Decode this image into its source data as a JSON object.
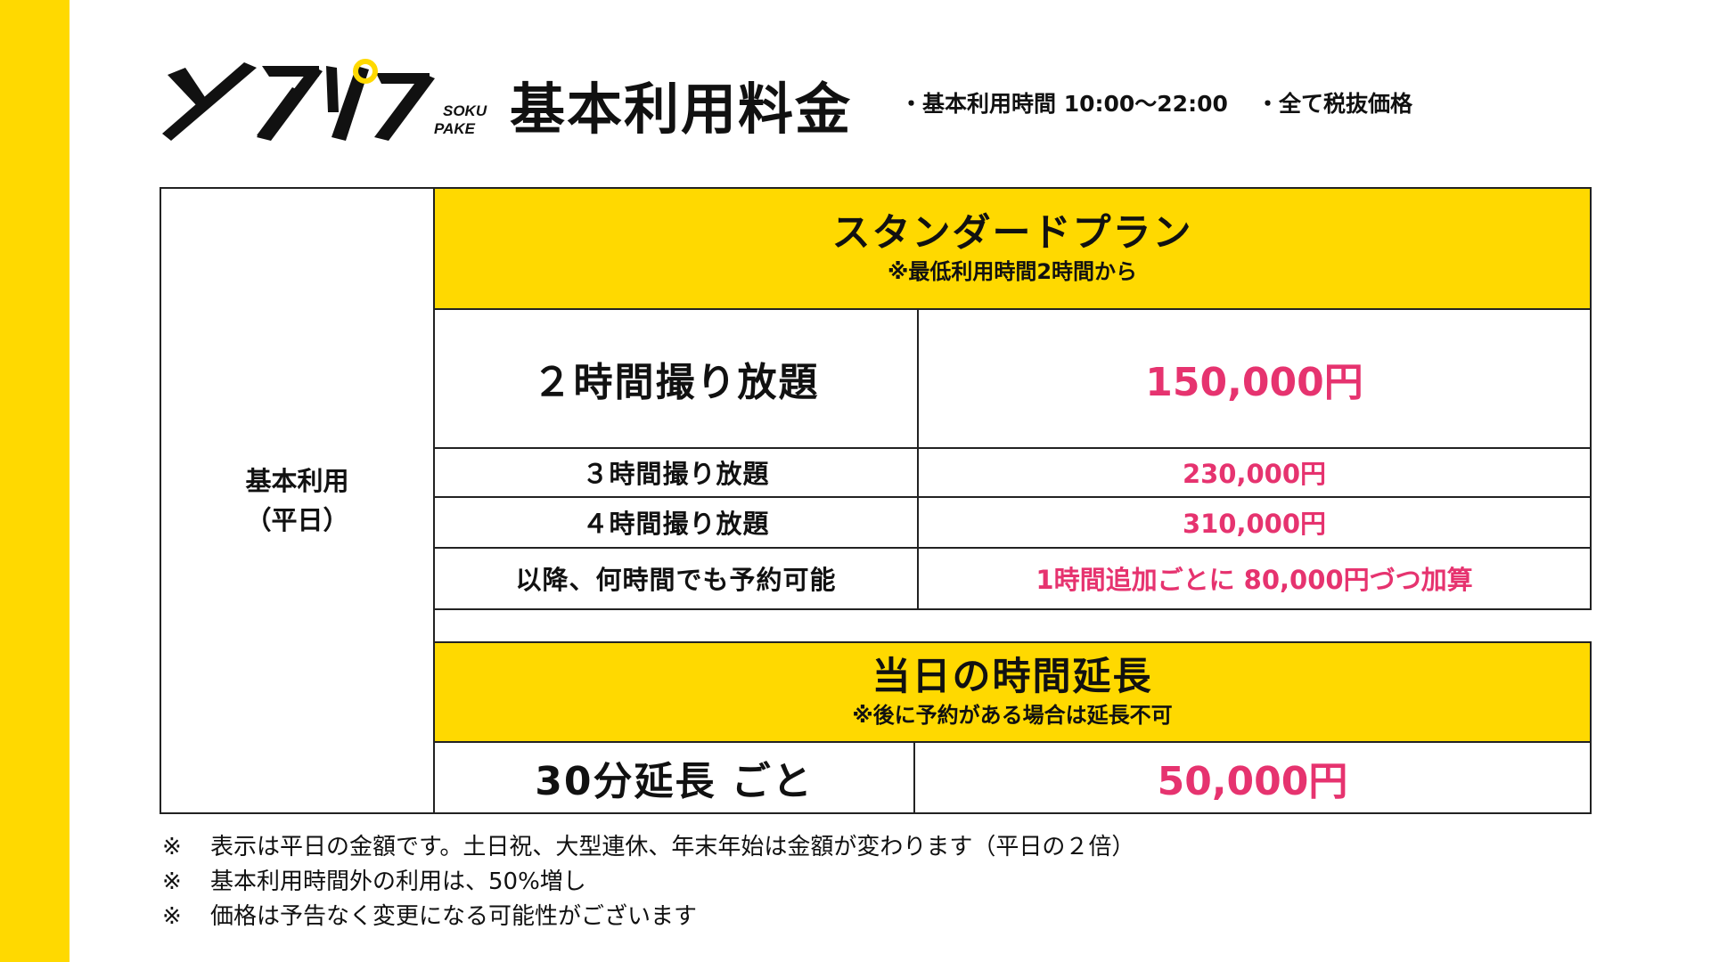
{
  "brand": {
    "logo_text": "ソクパケ",
    "logo_sub_1": "SOKU",
    "logo_sub_2": "PAKE",
    "accent_color": "#FFD900",
    "price_color": "#E6336F"
  },
  "header": {
    "title": "基本利用料金",
    "note_hours": "・基本利用時間 10:00〜22:00",
    "note_tax": "・全て税抜価格"
  },
  "table": {
    "category_line1": "基本利用",
    "category_line2": "（平日）",
    "standard_plan": {
      "title": "スタンダードプラン",
      "subtitle": "※最低利用時間2時間から",
      "rows": [
        {
          "label": "２時間撮り放題",
          "price": "150,000円"
        },
        {
          "label": "３時間撮り放題",
          "price": "230,000円"
        },
        {
          "label": "４時間撮り放題",
          "price": "310,000円"
        },
        {
          "label": "以降、何時間でも予約可能",
          "price": "1時間追加ごとに 80,000円づつ加算"
        }
      ]
    },
    "extension": {
      "title": "当日の時間延長",
      "subtitle": "※後に予約がある場合は延長不可",
      "label": "30分延長 ごと",
      "price": "50,000円"
    }
  },
  "footnotes": [
    {
      "mark": "※",
      "text": "表示は平日の金額です。土日祝、大型連休、年末年始は金額が変わります（平日の２倍）"
    },
    {
      "mark": "※",
      "text": "基本利用時間外の利用は、50%増し"
    },
    {
      "mark": "※",
      "text": "価格は予告なく変更になる可能性がございます"
    }
  ]
}
